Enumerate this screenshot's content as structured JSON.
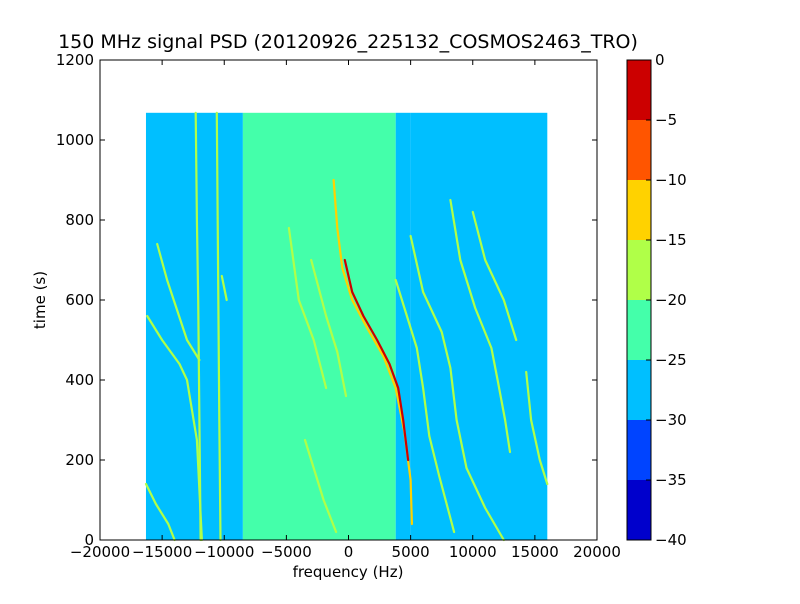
{
  "chart_data": {
    "type": "heatmap",
    "title": "150 MHz signal PSD (20120926_225132_COSMOS2463_TRO)",
    "xlabel": "frequency (Hz)",
    "ylabel": "time (s)",
    "xlim": [
      -20000,
      20000
    ],
    "ylim": [
      0,
      1200
    ],
    "x_ticks": [
      "−20000",
      "−15000",
      "−10000",
      "−5000",
      "0",
      "5000",
      "10000",
      "15000",
      "20000"
    ],
    "y_ticks": [
      "0",
      "200",
      "400",
      "600",
      "800",
      "1000",
      "1200"
    ],
    "data_extent": {
      "x": [
        -16300,
        16000
      ],
      "y": [
        0,
        1068
      ]
    },
    "grid": false,
    "colorbar": {
      "range": [
        -40,
        0
      ],
      "ticks": [
        "0",
        "−5",
        "−10",
        "−15",
        "−20",
        "−25",
        "−30",
        "−35",
        "−40"
      ],
      "levels": [
        {
          "from": -40,
          "to": -35,
          "color": "#0000cc"
        },
        {
          "from": -35,
          "to": -30,
          "color": "#0044ff"
        },
        {
          "from": -30,
          "to": -25,
          "color": "#00bfff"
        },
        {
          "from": -25,
          "to": -20,
          "color": "#44ffaa"
        },
        {
          "from": -20,
          "to": -15,
          "color": "#b0ff48"
        },
        {
          "from": -15,
          "to": -10,
          "color": "#ffd200"
        },
        {
          "from": -10,
          "to": -5,
          "color": "#ff5500"
        },
        {
          "from": -5,
          "to": 0,
          "color": "#cc0000"
        }
      ]
    },
    "background_regions": [
      {
        "x": [
          -16300,
          -8500
        ],
        "level": -27.5
      },
      {
        "x": [
          -8500,
          3800
        ],
        "level": -22.5
      },
      {
        "x": [
          3800,
          5000
        ],
        "level": -27.5
      },
      {
        "x": [
          5000,
          16000
        ],
        "level": -27.5
      }
    ],
    "traces": [
      {
        "level": -12.5,
        "points": [
          [
            -1200,
            900
          ],
          [
            -900,
            780
          ],
          [
            -500,
            680
          ],
          [
            300,
            600
          ],
          [
            1500,
            530
          ],
          [
            2800,
            460
          ],
          [
            3800,
            380
          ],
          [
            4500,
            270
          ],
          [
            5000,
            150
          ],
          [
            5100,
            40
          ]
        ]
      },
      {
        "level": -2.5,
        "points": [
          [
            -300,
            700
          ],
          [
            300,
            620
          ],
          [
            1200,
            560
          ],
          [
            2300,
            500
          ],
          [
            3300,
            440
          ],
          [
            4000,
            380
          ],
          [
            4400,
            300
          ],
          [
            4800,
            200
          ]
        ]
      },
      {
        "level": -17.5,
        "points": [
          [
            -4800,
            780
          ],
          [
            -4000,
            600
          ],
          [
            -2800,
            500
          ],
          [
            -1800,
            380
          ]
        ]
      },
      {
        "level": -17.5,
        "points": [
          [
            -3000,
            700
          ],
          [
            -1800,
            560
          ],
          [
            -900,
            470
          ],
          [
            -200,
            360
          ]
        ]
      },
      {
        "level": -17.5,
        "points": [
          [
            3800,
            650
          ],
          [
            4700,
            560
          ],
          [
            5500,
            480
          ],
          [
            6000,
            380
          ],
          [
            6500,
            260
          ],
          [
            7300,
            160
          ],
          [
            8500,
            20
          ]
        ]
      },
      {
        "level": -17.5,
        "points": [
          [
            5000,
            760
          ],
          [
            6000,
            620
          ],
          [
            7500,
            520
          ],
          [
            8200,
            430
          ],
          [
            8700,
            300
          ],
          [
            9500,
            180
          ],
          [
            11000,
            80
          ],
          [
            12500,
            0
          ]
        ]
      },
      {
        "level": -17.5,
        "points": [
          [
            8200,
            850
          ],
          [
            9000,
            700
          ],
          [
            10200,
            580
          ],
          [
            11500,
            480
          ],
          [
            12000,
            400
          ],
          [
            12600,
            300
          ],
          [
            13000,
            220
          ]
        ]
      },
      {
        "level": -17.5,
        "points": [
          [
            10000,
            820
          ],
          [
            11000,
            700
          ],
          [
            12500,
            600
          ],
          [
            13500,
            500
          ]
        ]
      },
      {
        "level": -17.5,
        "points": [
          [
            14300,
            420
          ],
          [
            14700,
            300
          ],
          [
            15400,
            200
          ],
          [
            16000,
            140
          ]
        ]
      },
      {
        "level": -17.5,
        "points": [
          [
            -16200,
            560
          ],
          [
            -15000,
            500
          ],
          [
            -13600,
            440
          ],
          [
            -13000,
            400
          ],
          [
            -12200,
            250
          ],
          [
            -11800,
            0
          ]
        ]
      },
      {
        "level": -17.5,
        "points": [
          [
            -16300,
            140
          ],
          [
            -15500,
            90
          ],
          [
            -14500,
            40
          ],
          [
            -14000,
            0
          ]
        ]
      },
      {
        "level": -17.5,
        "points": [
          [
            -15400,
            740
          ],
          [
            -14600,
            650
          ],
          [
            -13000,
            500
          ],
          [
            -12000,
            450
          ]
        ]
      },
      {
        "level": -17.5,
        "points": [
          [
            -10200,
            660
          ],
          [
            -9800,
            600
          ]
        ]
      },
      {
        "level": -17.5,
        "points": [
          [
            -12300,
            1068
          ],
          [
            -12200,
            800
          ],
          [
            -12100,
            600
          ],
          [
            -12000,
            300
          ],
          [
            -11900,
            0
          ]
        ]
      },
      {
        "level": -17.5,
        "points": [
          [
            -3500,
            250
          ],
          [
            -2000,
            100
          ],
          [
            -1000,
            20
          ]
        ]
      },
      {
        "level": -17.5,
        "points": [
          [
            -10600,
            1068
          ],
          [
            -10500,
            700
          ],
          [
            -10400,
            300
          ],
          [
            -10300,
            0
          ]
        ]
      }
    ]
  }
}
